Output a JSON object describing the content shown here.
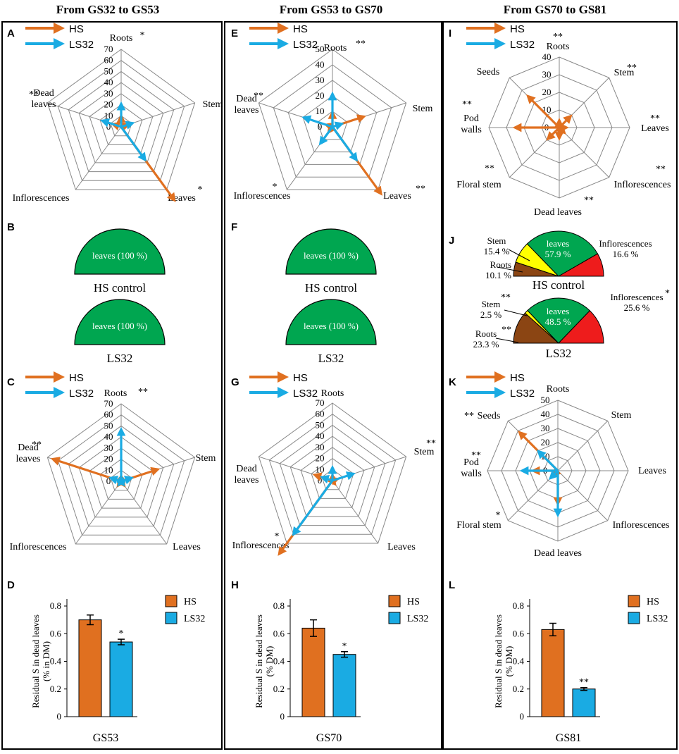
{
  "columns": [
    {
      "title": "From GS32 to GS53"
    },
    {
      "title": "From GS53 to GS70"
    },
    {
      "title": "From GS70 to GS81"
    }
  ],
  "legend": {
    "hs": "HS",
    "ls": "LS32"
  },
  "colors": {
    "hs": "#e07020",
    "ls": "#1aabe3",
    "green": "#00a650",
    "yellow": "#ffff00",
    "brown": "#8b4513",
    "red": "#ee1c1c",
    "grid": "#888888"
  },
  "chart_data": [
    {
      "id": "A",
      "type": "radar",
      "max": 70,
      "step": 10,
      "ticks": [
        "0",
        "10",
        "20",
        "30",
        "40",
        "50",
        "60",
        "70"
      ],
      "axes": [
        "Roots",
        "Stem",
        "Leaves",
        "Inflorescences",
        "Dead leaves"
      ],
      "stars": {
        "Roots": "*",
        "Stem": "",
        "Leaves": "*",
        "Inflorescences": "",
        "Dead leaves": "**"
      },
      "series": [
        {
          "name": "HS",
          "values": [
            8,
            5,
            80,
            0,
            6
          ]
        },
        {
          "name": "LS32",
          "values": [
            19,
            9,
            35,
            0,
            16
          ]
        }
      ]
    },
    {
      "id": "B",
      "type": "pie",
      "label": "HS control",
      "slices": [
        {
          "name": "leaves",
          "pct": "100 %",
          "value": 100,
          "color": "green"
        }
      ]
    },
    {
      "id": "B2",
      "type": "pie",
      "label": "LS32",
      "slices": [
        {
          "name": "leaves",
          "pct": "100 %",
          "value": 100,
          "color": "green"
        }
      ]
    },
    {
      "id": "C",
      "type": "radar",
      "max": 70,
      "step": 10,
      "ticks": [
        "0",
        "10",
        "20",
        "30",
        "40",
        "50",
        "60",
        "70"
      ],
      "axes": [
        "Roots",
        "Stem",
        "Leaves",
        "Inflorescences",
        "Dead leaves"
      ],
      "stars": {
        "Roots": "**",
        "Stem": "",
        "Leaves": "",
        "Inflorescences": "",
        "Dead leaves": "**"
      },
      "series": [
        {
          "name": "HS",
          "values": [
            3,
            33,
            3,
            3,
            63
          ]
        },
        {
          "name": "LS32",
          "values": [
            45,
            8,
            2,
            2,
            8
          ]
        }
      ]
    },
    {
      "id": "D",
      "type": "bar",
      "ylabel": "Residual S in dead leaves (% in DM)",
      "xlabel": "GS53",
      "ylim": [
        0,
        0.8
      ],
      "ticks": [
        "0",
        "0.2",
        "0.4",
        "0.6",
        "0.8"
      ],
      "series": [
        {
          "name": "HS",
          "value": 0.7,
          "err": 0.035,
          "star": ""
        },
        {
          "name": "LS32",
          "value": 0.54,
          "err": 0.02,
          "star": "*"
        }
      ]
    },
    {
      "id": "E",
      "type": "radar",
      "max": 50,
      "step": 10,
      "ticks": [
        "0",
        "10",
        "20",
        "30",
        "40",
        "50"
      ],
      "axes": [
        "Roots",
        "Stem",
        "Leaves",
        "Inflorescences",
        "Dead leaves"
      ],
      "stars": {
        "Roots": "**",
        "Stem": "",
        "Leaves": "**",
        "Inflorescences": "*",
        "Dead leaves": "**"
      },
      "series": [
        {
          "name": "HS",
          "values": [
            8,
            20,
            52,
            3,
            3
          ]
        },
        {
          "name": "LS32",
          "values": [
            20,
            5,
            25,
            12,
            18
          ]
        }
      ]
    },
    {
      "id": "F",
      "type": "pie",
      "label": "HS control",
      "slices": [
        {
          "name": "leaves",
          "pct": "100 %",
          "value": 100,
          "color": "green"
        }
      ]
    },
    {
      "id": "F2",
      "type": "pie",
      "label": "LS32",
      "slices": [
        {
          "name": "leaves",
          "pct": "100 %",
          "value": 100,
          "color": "green"
        }
      ]
    },
    {
      "id": "G",
      "type": "radar",
      "max": 70,
      "step": 10,
      "ticks": [
        "0",
        "10",
        "20",
        "30",
        "40",
        "50",
        "60",
        "70"
      ],
      "axes": [
        "Roots",
        "Stem",
        "Leaves",
        "Inflorescences",
        "Dead leaves"
      ],
      "stars": {
        "Roots": "",
        "Stem": "**",
        "Leaves": "",
        "Inflorescences": "*",
        "Dead leaves": ""
      },
      "series": [
        {
          "name": "HS",
          "values": [
            3,
            3,
            2,
            80,
            15
          ]
        },
        {
          "name": "LS32",
          "values": [
            10,
            18,
            0,
            58,
            8
          ]
        }
      ]
    },
    {
      "id": "H",
      "type": "bar",
      "ylabel": "Residual S in dead leaves (% DM)",
      "xlabel": "GS70",
      "ylim": [
        0,
        0.8
      ],
      "ticks": [
        "0",
        "0.2",
        "0.4",
        "0.6",
        "0.8"
      ],
      "series": [
        {
          "name": "HS",
          "value": 0.64,
          "err": 0.06,
          "star": ""
        },
        {
          "name": "LS32",
          "value": 0.45,
          "err": 0.02,
          "star": "*"
        }
      ]
    },
    {
      "id": "I",
      "type": "radar",
      "max": 40,
      "step": 10,
      "ticks": [
        "0",
        "10",
        "20",
        "30",
        "40"
      ],
      "axes": [
        "Roots",
        "Stem",
        "Leaves",
        "Inflorescences",
        "Dead leaves",
        "Floral stem",
        "Pod walls",
        "Seeds"
      ],
      "stars": {
        "Roots": "**",
        "Stem": "**",
        "Leaves": "**",
        "Inflorescences": "**",
        "Dead leaves": "**",
        "Floral stem": "**",
        "Pod walls": "**",
        "Seeds": ""
      },
      "series": [
        {
          "name": "HS",
          "values": [
            3,
            8,
            3,
            3,
            5,
            8,
            24,
            24
          ]
        },
        {
          "name": "LS32",
          "values": [
            0,
            0,
            0,
            0,
            0,
            0,
            0,
            0
          ]
        }
      ]
    },
    {
      "id": "J",
      "type": "pie",
      "label": "HS control",
      "slices": [
        {
          "name": "Roots",
          "pct": "10.1 %",
          "value": 10.1,
          "color": "brown"
        },
        {
          "name": "Stem",
          "pct": "15.4 %",
          "value": 15.4,
          "color": "yellow"
        },
        {
          "name": "leaves",
          "pct": "57.9 %",
          "value": 57.9,
          "color": "green"
        },
        {
          "name": "Inflorescences",
          "pct": "16.6 %",
          "value": 16.6,
          "color": "red"
        }
      ]
    },
    {
      "id": "J2",
      "type": "pie",
      "label": "LS32",
      "slices": [
        {
          "name": "Roots",
          "pct": "23.3 %",
          "value": 23.3,
          "color": "brown",
          "star": "**"
        },
        {
          "name": "Stem",
          "pct": "2.5 %",
          "value": 2.5,
          "color": "yellow",
          "star": "**"
        },
        {
          "name": "leaves",
          "pct": "48.5 %",
          "value": 48.5,
          "color": "green",
          "star": ""
        },
        {
          "name": "Inflorescences",
          "pct": "25.6 %",
          "value": 25.6,
          "color": "red",
          "star": "*"
        }
      ]
    },
    {
      "id": "K",
      "type": "radar",
      "max": 50,
      "step": 10,
      "ticks": [
        "0",
        "10",
        "20",
        "30",
        "40",
        "50"
      ],
      "axes": [
        "Roots",
        "Stem",
        "Leaves",
        "Inflorescences",
        "Dead leaves",
        "Floral stem",
        "Pod walls",
        "Seeds"
      ],
      "stars": {
        "Roots": "",
        "Stem": "",
        "Leaves": "",
        "Inflorescences": "",
        "Dead leaves": "",
        "Floral stem": "*",
        "Pod walls": "**",
        "Seeds": "**"
      },
      "series": [
        {
          "name": "HS",
          "values": [
            0,
            0,
            0,
            0,
            22,
            3,
            16,
            37
          ]
        },
        {
          "name": "LS32",
          "values": [
            0,
            0,
            0,
            0,
            30,
            6,
            24,
            18
          ]
        }
      ]
    },
    {
      "id": "L",
      "type": "bar",
      "ylabel": "Residual S in dead leaves (% DM)",
      "xlabel": "GS81",
      "ylim": [
        0,
        0.8
      ],
      "ticks": [
        "0",
        "0.2",
        "0.4",
        "0.6",
        "0.8"
      ],
      "series": [
        {
          "name": "HS",
          "value": 0.63,
          "err": 0.045,
          "star": ""
        },
        {
          "name": "LS32",
          "value": 0.2,
          "err": 0.01,
          "star": "**"
        }
      ]
    }
  ]
}
